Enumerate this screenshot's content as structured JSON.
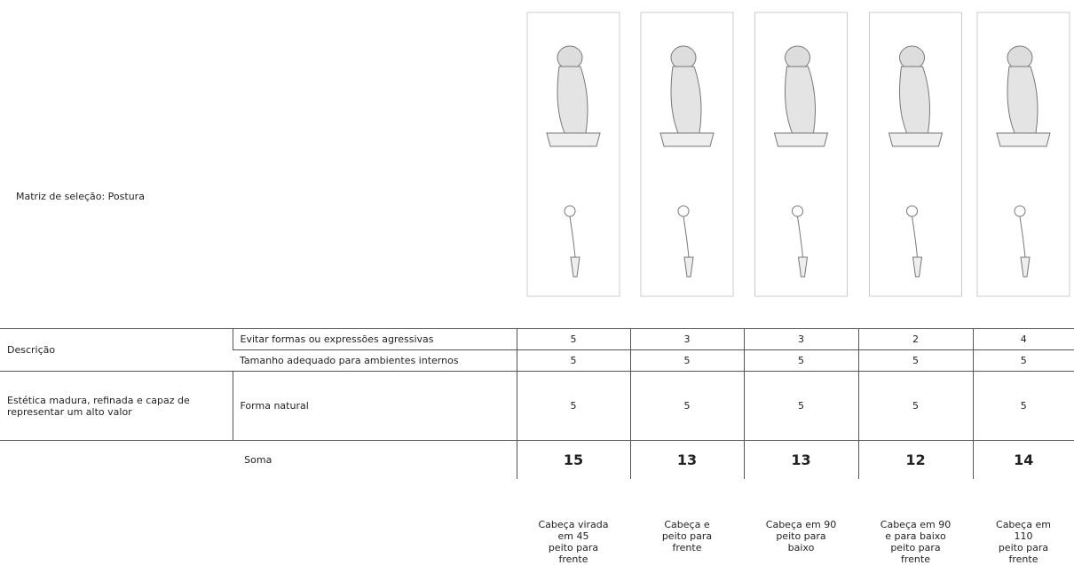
{
  "title": "Matriz de seleção: Postura",
  "table": {
    "rows": [
      {
        "group": "Descrição",
        "criterion": "Evitar formas ou expressões agressivas",
        "scores": [
          5,
          3,
          3,
          2,
          4
        ]
      },
      {
        "criterion": "Tamanho adequado para ambientes internos",
        "scores": [
          5,
          5,
          5,
          5,
          5
        ]
      },
      {
        "group": "Estética madura, refinada e capaz de representar um alto valor",
        "criterion": "Forma natural",
        "scores": [
          5,
          5,
          5,
          5,
          5
        ]
      }
    ],
    "sum": {
      "label": "Soma",
      "values": [
        15,
        13,
        13,
        12,
        14
      ]
    }
  },
  "captions": [
    [
      "Cabeça virada em 45",
      "peito para frente"
    ],
    [
      "Cabeça e peito para frente"
    ],
    [
      "Cabeça em 90",
      "peito para baixo"
    ],
    [
      "Cabeça em 90 e para baixo",
      "peito para frente"
    ],
    [
      "Cabeça em 110",
      "peito para frente"
    ]
  ]
}
